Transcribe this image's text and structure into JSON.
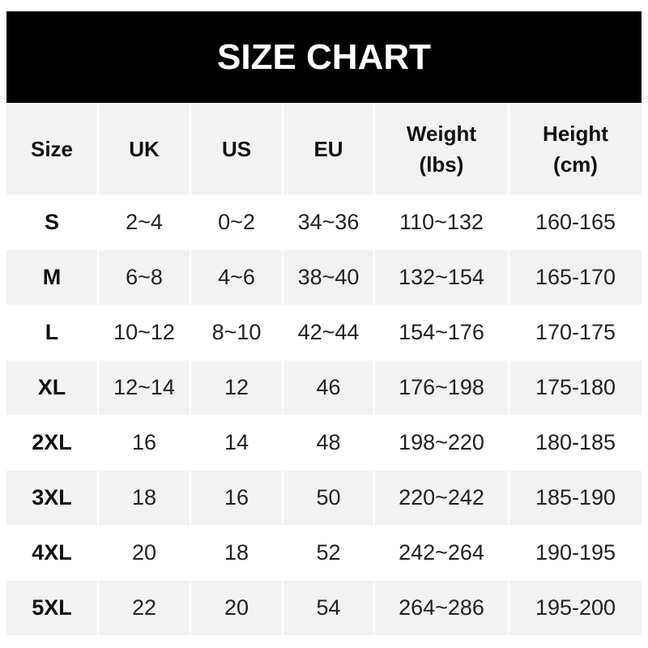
{
  "title": "SIZE CHART",
  "headers": [
    "Size",
    "UK",
    "US",
    "EU",
    "Weight\n(lbs)",
    "Height\n(cm)"
  ],
  "rows": [
    [
      "S",
      "2~4",
      "0~2",
      "34~36",
      "110~132",
      "160-165"
    ],
    [
      "M",
      "6~8",
      "4~6",
      "38~40",
      "132~154",
      "165-170"
    ],
    [
      "L",
      "10~12",
      "8~10",
      "42~44",
      "154~176",
      "170-175"
    ],
    [
      "XL",
      "12~14",
      "12",
      "46",
      "176~198",
      "175-180"
    ],
    [
      "2XL",
      "16",
      "14",
      "48",
      "198~220",
      "180-185"
    ],
    [
      "3XL",
      "18",
      "16",
      "50",
      "220~242",
      "185-190"
    ],
    [
      "4XL",
      "20",
      "18",
      "52",
      "242~264",
      "190-195"
    ],
    [
      "5XL",
      "22",
      "20",
      "54",
      "264~286",
      "195-200"
    ]
  ],
  "colors": {
    "title_bg": "#000000",
    "title_text": "#ffffff",
    "stripe": "#f2f2f2"
  }
}
